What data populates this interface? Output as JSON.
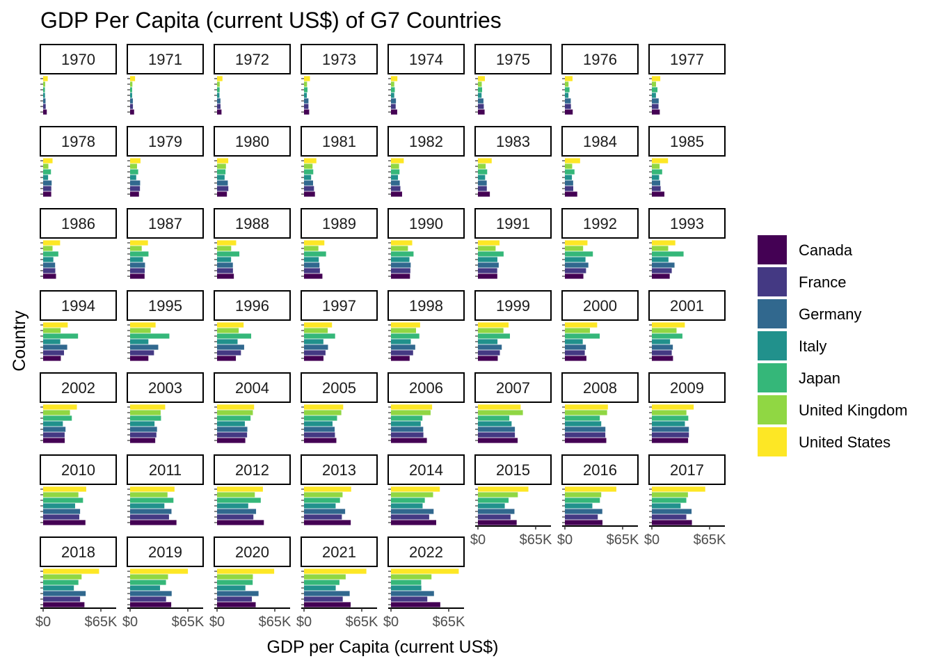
{
  "chart_data": {
    "type": "bar",
    "orientation": "horizontal",
    "title": "GDP Per Capita (current US$) of G7 Countries",
    "xlabel": "GDP per Capita (current US$)",
    "ylabel": "Country",
    "x_tick_labels": [
      "$0",
      "$65K"
    ],
    "x_ticks": [
      0,
      65000
    ],
    "xlim": [
      0,
      80000
    ],
    "facet_by": "year",
    "legend_position": "right",
    "countries": [
      "Canada",
      "France",
      "Germany",
      "Italy",
      "Japan",
      "United Kingdom",
      "United States"
    ],
    "colors": {
      "Canada": "#440154",
      "France": "#443983",
      "Germany": "#31688e",
      "Italy": "#21918c",
      "Japan": "#35b779",
      "United Kingdom": "#90d743",
      "United States": "#fde725"
    },
    "panels": [
      {
        "year": "1970",
        "values": {
          "Canada": 4100,
          "France": 2900,
          "Germany": 2700,
          "Italy": 2100,
          "Japan": 2000,
          "United Kingdom": 2300,
          "United States": 5200
        }
      },
      {
        "year": "1971",
        "values": {
          "Canada": 4500,
          "France": 3200,
          "Germany": 3100,
          "Italy": 2300,
          "Japan": 2300,
          "United Kingdom": 2600,
          "United States": 5600
        }
      },
      {
        "year": "1972",
        "values": {
          "Canada": 5000,
          "France": 3900,
          "Germany": 3800,
          "Italy": 2700,
          "Japan": 2900,
          "United Kingdom": 3000,
          "United States": 6100
        }
      },
      {
        "year": "1973",
        "values": {
          "Canada": 5800,
          "France": 5000,
          "Germany": 5000,
          "Italy": 3200,
          "Japan": 3900,
          "United Kingdom": 3400,
          "United States": 6700
        }
      },
      {
        "year": "1974",
        "values": {
          "Canada": 7000,
          "France": 5300,
          "Germany": 5600,
          "Italy": 3700,
          "Japan": 4300,
          "United Kingdom": 3700,
          "United States": 7200
        }
      },
      {
        "year": "1975",
        "values": {
          "Canada": 7500,
          "France": 6600,
          "Germany": 6200,
          "Italy": 4100,
          "Japan": 4700,
          "United Kingdom": 4300,
          "United States": 7800
        }
      },
      {
        "year": "1976",
        "values": {
          "Canada": 8800,
          "France": 6800,
          "Germany": 6600,
          "Italy": 4000,
          "Japan": 5200,
          "United Kingdom": 4100,
          "United States": 8600
        }
      },
      {
        "year": "1977",
        "values": {
          "Canada": 8900,
          "France": 7500,
          "Germany": 7700,
          "Italy": 4600,
          "Japan": 6300,
          "United Kingdom": 4700,
          "United States": 9500
        }
      },
      {
        "year": "1978",
        "values": {
          "Canada": 9100,
          "France": 9200,
          "Germany": 9600,
          "Italy": 5600,
          "Japan": 8800,
          "United Kingdom": 5900,
          "United States": 10600
        }
      },
      {
        "year": "1979",
        "values": {
          "Canada": 10000,
          "France": 11100,
          "Germany": 11300,
          "Italy": 6900,
          "Japan": 9100,
          "United Kingdom": 7800,
          "United States": 11700
        }
      },
      {
        "year": "1980",
        "values": {
          "Canada": 11100,
          "France": 12700,
          "Germany": 12100,
          "Italy": 8500,
          "Japan": 9500,
          "United Kingdom": 10000,
          "United States": 12600
        }
      },
      {
        "year": "1981",
        "values": {
          "Canada": 12300,
          "France": 11200,
          "Germany": 10200,
          "Italy": 8000,
          "Japan": 10400,
          "United Kingdom": 9600,
          "United States": 13900
        }
      },
      {
        "year": "1982",
        "values": {
          "Canada": 12500,
          "France": 10600,
          "Germany": 9900,
          "Italy": 7900,
          "Japan": 9600,
          "United Kingdom": 9100,
          "United States": 14400
        }
      },
      {
        "year": "1983",
        "values": {
          "Canada": 13400,
          "France": 10000,
          "Germany": 9900,
          "Italy": 8100,
          "Japan": 10400,
          "United Kingdom": 8700,
          "United States": 15500
        }
      },
      {
        "year": "1984",
        "values": {
          "Canada": 13900,
          "France": 9400,
          "Germany": 9300,
          "Italy": 7900,
          "Japan": 10800,
          "United Kingdom": 8200,
          "United States": 17100
        }
      },
      {
        "year": "1985",
        "values": {
          "Canada": 14100,
          "France": 9900,
          "Germany": 9400,
          "Italy": 8200,
          "Japan": 11600,
          "United Kingdom": 8700,
          "United States": 18200
        }
      },
      {
        "year": "1986",
        "values": {
          "Canada": 14500,
          "France": 13700,
          "Germany": 13500,
          "Italy": 11500,
          "Japan": 17100,
          "United Kingdom": 10600,
          "United States": 19100
        }
      },
      {
        "year": "1987",
        "values": {
          "Canada": 16300,
          "France": 16500,
          "Germany": 16800,
          "Italy": 14500,
          "Japan": 20700,
          "United Kingdom": 13100,
          "United States": 20100
        }
      },
      {
        "year": "1988",
        "values": {
          "Canada": 18900,
          "France": 17900,
          "Germany": 17800,
          "Italy": 15800,
          "Japan": 25100,
          "United Kingdom": 15900,
          "United States": 21500
        }
      },
      {
        "year": "1989",
        "values": {
          "Canada": 20700,
          "France": 17900,
          "Germany": 17400,
          "Italy": 16600,
          "Japan": 24800,
          "United Kingdom": 16200,
          "United States": 22900
        }
      },
      {
        "year": "1990",
        "values": {
          "Canada": 21400,
          "France": 21800,
          "Germany": 22200,
          "Italy": 20800,
          "Japan": 25400,
          "United Kingdom": 19100,
          "United States": 23900
        }
      },
      {
        "year": "1991",
        "values": {
          "Canada": 21800,
          "France": 21700,
          "Germany": 23400,
          "Italy": 21900,
          "Japan": 28900,
          "United Kingdom": 19900,
          "United States": 24300
        }
      },
      {
        "year": "1992",
        "values": {
          "Canada": 20800,
          "France": 23800,
          "Germany": 26400,
          "Italy": 23200,
          "Japan": 31500,
          "United Kingdom": 20500,
          "United States": 25400
        }
      },
      {
        "year": "1993",
        "values": {
          "Canada": 20100,
          "France": 22400,
          "Germany": 25500,
          "Italy": 18700,
          "Japan": 35700,
          "United Kingdom": 18400,
          "United States": 26400
        }
      },
      {
        "year": "1994",
        "values": {
          "Canada": 19900,
          "France": 23500,
          "Germany": 27100,
          "Italy": 19300,
          "Japan": 39300,
          "United Kingdom": 19700,
          "United States": 27700
        }
      },
      {
        "year": "1995",
        "values": {
          "Canada": 20600,
          "France": 26900,
          "Germany": 31700,
          "Italy": 20600,
          "Japan": 44200,
          "United Kingdom": 23200,
          "United States": 28700
        }
      },
      {
        "year": "1996",
        "values": {
          "Canada": 21200,
          "France": 26900,
          "Germany": 30500,
          "Italy": 23100,
          "Japan": 38400,
          "United Kingdom": 24400,
          "United States": 29900
        }
      },
      {
        "year": "1997",
        "values": {
          "Canada": 21900,
          "France": 24200,
          "Germany": 27000,
          "Italy": 21800,
          "Japan": 35000,
          "United Kingdom": 26700,
          "United States": 31500
        }
      },
      {
        "year": "1998",
        "values": {
          "Canada": 21000,
          "France": 24900,
          "Germany": 27300,
          "Italy": 22300,
          "Japan": 31900,
          "United Kingdom": 28200,
          "United States": 32800
        }
      },
      {
        "year": "1999",
        "values": {
          "Canada": 22300,
          "France": 24700,
          "Germany": 26800,
          "Italy": 22000,
          "Japan": 36000,
          "United Kingdom": 28700,
          "United States": 34500
        }
      },
      {
        "year": "2000",
        "values": {
          "Canada": 24200,
          "France": 22400,
          "Germany": 23600,
          "Italy": 20100,
          "Japan": 39200,
          "United Kingdom": 28200,
          "United States": 36300
        }
      },
      {
        "year": "2001",
        "values": {
          "Canada": 23800,
          "France": 22400,
          "Germany": 23600,
          "Italy": 20500,
          "Japan": 34400,
          "United Kingdom": 27800,
          "United States": 37100
        }
      },
      {
        "year": "2002",
        "values": {
          "Canada": 24300,
          "France": 24200,
          "Germany": 25200,
          "Italy": 22200,
          "Japan": 32300,
          "United Kingdom": 30200,
          "United States": 38000
        }
      },
      {
        "year": "2003",
        "values": {
          "Canada": 28300,
          "France": 29600,
          "Germany": 30300,
          "Italy": 27500,
          "Japan": 34800,
          "United Kingdom": 34400,
          "United States": 39500
        }
      },
      {
        "year": "2004",
        "values": {
          "Canada": 31800,
          "France": 33800,
          "Germany": 34100,
          "Italy": 31300,
          "Japan": 37700,
          "United Kingdom": 40300,
          "United States": 41700
        }
      },
      {
        "year": "2005",
        "values": {
          "Canada": 36400,
          "France": 34800,
          "Germany": 34500,
          "Italy": 32100,
          "Japan": 37200,
          "United Kingdom": 42000,
          "United States": 44100
        }
      },
      {
        "year": "2006",
        "values": {
          "Canada": 40400,
          "France": 36500,
          "Germany": 36300,
          "Italy": 33500,
          "Japan": 35400,
          "United Kingdom": 44600,
          "United States": 46300
        }
      },
      {
        "year": "2007",
        "values": {
          "Canada": 44700,
          "France": 41600,
          "Germany": 41600,
          "Italy": 37900,
          "Japan": 35300,
          "United Kingdom": 50600,
          "United States": 48100
        }
      },
      {
        "year": "2008",
        "values": {
          "Canada": 46600,
          "France": 45500,
          "Germany": 45600,
          "Italy": 40900,
          "Japan": 39300,
          "United Kingdom": 47500,
          "United States": 48400
        }
      },
      {
        "year": "2009",
        "values": {
          "Canada": 40800,
          "France": 41700,
          "Germany": 41700,
          "Italy": 37200,
          "Japan": 41000,
          "United Kingdom": 38900,
          "United States": 47100
        }
      },
      {
        "year": "2010",
        "values": {
          "Canada": 47600,
          "France": 40700,
          "Germany": 41600,
          "Italy": 36000,
          "Japan": 44900,
          "United Kingdom": 39700,
          "United States": 48500
        }
      },
      {
        "year": "2011",
        "values": {
          "Canada": 52200,
          "France": 43800,
          "Germany": 46600,
          "Italy": 38600,
          "Japan": 48800,
          "United Kingdom": 42100,
          "United States": 50000
        }
      },
      {
        "year": "2012",
        "values": {
          "Canada": 52700,
          "France": 40900,
          "Germany": 43900,
          "Italy": 35100,
          "Japan": 49200,
          "United Kingdom": 42500,
          "United States": 51600
        }
      },
      {
        "year": "2013",
        "values": {
          "Canada": 52600,
          "France": 42600,
          "Germany": 46300,
          "Italy": 35600,
          "Japan": 40500,
          "United Kingdom": 43400,
          "United States": 53100
        }
      },
      {
        "year": "2014",
        "values": {
          "Canada": 50900,
          "France": 43000,
          "Germany": 48000,
          "Italy": 35600,
          "Japan": 38100,
          "United Kingdom": 47400,
          "United States": 55000
        }
      },
      {
        "year": "2015",
        "values": {
          "Canada": 43600,
          "France": 36700,
          "Germany": 41100,
          "Italy": 30200,
          "Japan": 34500,
          "United Kingdom": 44900,
          "United States": 56800
        }
      },
      {
        "year": "2016",
        "values": {
          "Canada": 42300,
          "France": 37000,
          "Germany": 42100,
          "Italy": 30900,
          "Japan": 39400,
          "United Kingdom": 40900,
          "United States": 57900
        }
      },
      {
        "year": "2017",
        "values": {
          "Canada": 45100,
          "France": 38800,
          "Germany": 44700,
          "Italy": 32400,
          "Japan": 38800,
          "United Kingdom": 40600,
          "United States": 60100
        }
      },
      {
        "year": "2018",
        "values": {
          "Canada": 46500,
          "France": 41600,
          "Germany": 47900,
          "Italy": 34600,
          "Japan": 39700,
          "United Kingdom": 43300,
          "United States": 63000
        }
      },
      {
        "year": "2019",
        "values": {
          "Canada": 46300,
          "France": 40500,
          "Germany": 46800,
          "Italy": 33700,
          "Japan": 40400,
          "United Kingdom": 42700,
          "United States": 65100
        }
      },
      {
        "year": "2020",
        "values": {
          "Canada": 43500,
          "France": 39200,
          "Germany": 46700,
          "Italy": 31900,
          "Japan": 40100,
          "United Kingdom": 40300,
          "United States": 64300
        }
      },
      {
        "year": "2021",
        "values": {
          "Canada": 52500,
          "France": 43600,
          "Germany": 51400,
          "Italy": 35700,
          "Japan": 39900,
          "United Kingdom": 46900,
          "United States": 70200
        }
      },
      {
        "year": "2022",
        "values": {
          "Canada": 55500,
          "France": 40900,
          "Germany": 48400,
          "Italy": 34200,
          "Japan": 34000,
          "United Kingdom": 45600,
          "United States": 76300
        }
      }
    ]
  }
}
